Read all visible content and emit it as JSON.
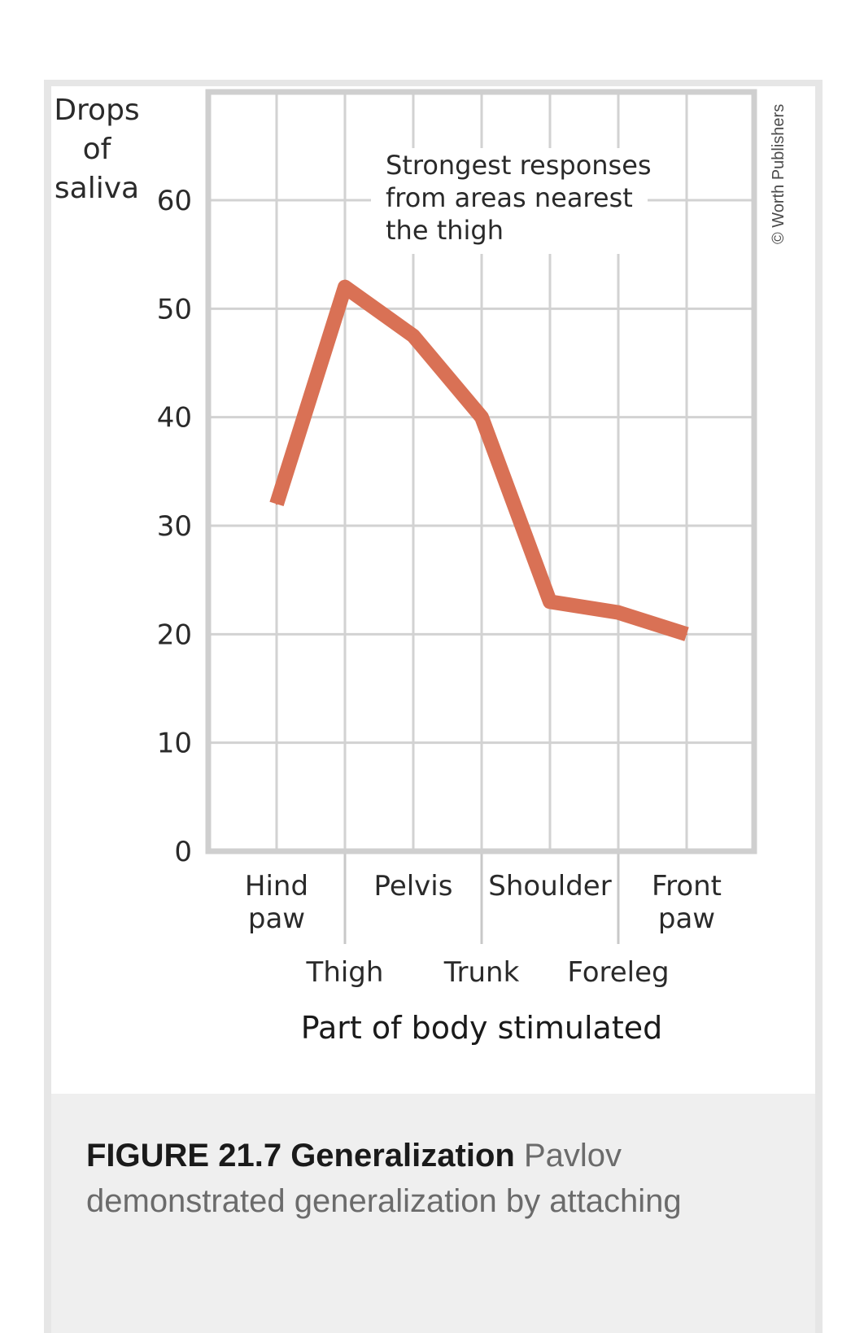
{
  "chart_data": {
    "type": "line",
    "ylabel": [
      "Drops",
      "of",
      "saliva"
    ],
    "xlabel": "Part of body stimulated",
    "ylim": [
      0,
      60
    ],
    "yticks": [
      0,
      10,
      20,
      30,
      40,
      50,
      60
    ],
    "categories": [
      {
        "label": [
          "Hind",
          "paw"
        ],
        "row": "top"
      },
      {
        "label": [
          "Thigh"
        ],
        "row": "bottom"
      },
      {
        "label": [
          "Pelvis"
        ],
        "row": "top"
      },
      {
        "label": [
          "Trunk"
        ],
        "row": "bottom"
      },
      {
        "label": [
          "Shoulder"
        ],
        "row": "top"
      },
      {
        "label": [
          "Foreleg"
        ],
        "row": "bottom"
      },
      {
        "label": [
          "Front",
          "paw"
        ],
        "row": "top"
      }
    ],
    "values": [
      32,
      52,
      47.5,
      40,
      23,
      22,
      20
    ],
    "line_color": "#d97155",
    "grid": true,
    "annotation": [
      "Strongest responses",
      "from areas nearest",
      "the thigh"
    ]
  },
  "credit": "© Worth Publishers",
  "caption": {
    "figure_title": "FIGURE 21.7 Generalization",
    "text": " Pavlov demonstrated generalization by attaching"
  }
}
